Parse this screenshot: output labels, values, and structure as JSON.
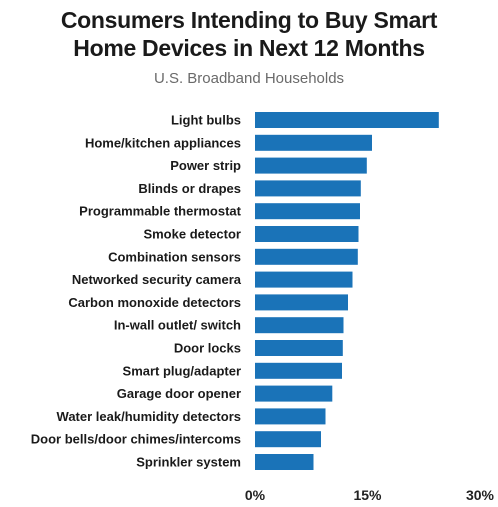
{
  "chart_data": {
    "type": "bar",
    "orientation": "horizontal",
    "title": "Consumers Intending to Buy Smart Home Devices in Next 12 Months",
    "subtitle": "U.S. Broadband Households",
    "categories": [
      "Light bulbs",
      "Home/kitchen appliances",
      "Power strip",
      "Blinds or drapes",
      "Programmable thermostat",
      "Smoke detector",
      "Combination sensors",
      "Networked security camera",
      "Carbon monoxide detectors",
      "In-wall outlet/ switch",
      "Door locks",
      "Smart plug/adapter",
      "Garage door opener",
      "Water leak/humidity detectors",
      "Door bells/door chimes/intercoms",
      "Sprinkler system"
    ],
    "values": [
      24.5,
      15.6,
      14.9,
      14.1,
      14.0,
      13.8,
      13.7,
      13.0,
      12.4,
      11.8,
      11.7,
      11.6,
      10.3,
      9.4,
      8.8,
      7.8
    ],
    "xlim": [
      0,
      30
    ],
    "xticks": [
      0,
      15,
      30
    ],
    "xtick_labels": [
      "0%",
      "15%",
      "30%"
    ],
    "bar_color": "#1a73b8",
    "grid": false,
    "legend": false
  }
}
